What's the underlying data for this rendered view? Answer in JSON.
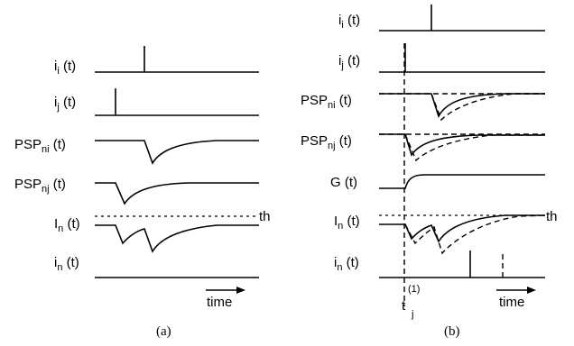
{
  "panel_a": {
    "caption": "(a)",
    "rows": [
      {
        "base": "i",
        "sub": "i",
        "arg": " (t)"
      },
      {
        "base": "i",
        "sub": "j",
        "arg": " (t)"
      },
      {
        "base": "PSP",
        "sub": "ni",
        "arg": " (t)"
      },
      {
        "base": "PSP",
        "sub": "nj",
        "arg": " (t)"
      },
      {
        "base": "I",
        "sub": "n",
        "arg": " (t)"
      },
      {
        "base": "i",
        "sub": "n",
        "arg": " (t)"
      }
    ],
    "threshold_label": "th",
    "time_label": "time"
  },
  "panel_b": {
    "caption": "(b)",
    "rows": [
      {
        "base": "i",
        "sub": "i",
        "arg": " (t)"
      },
      {
        "base": "i",
        "sub": "j",
        "arg": " (t)"
      },
      {
        "base": "PSP",
        "sub": "ni",
        "arg": " (t)"
      },
      {
        "base": "PSP",
        "sub": "nj",
        "arg": " (t)"
      },
      {
        "base": "G",
        "sub": "",
        "arg": " (t)"
      },
      {
        "base": "I",
        "sub": "n",
        "arg": " (t)"
      },
      {
        "base": "i",
        "sub": "n",
        "arg": " (t)"
      }
    ],
    "threshold_label": "th",
    "time_label": "time",
    "marker": {
      "base": "t",
      "sup": "(1)",
      "sub": "j"
    }
  }
}
